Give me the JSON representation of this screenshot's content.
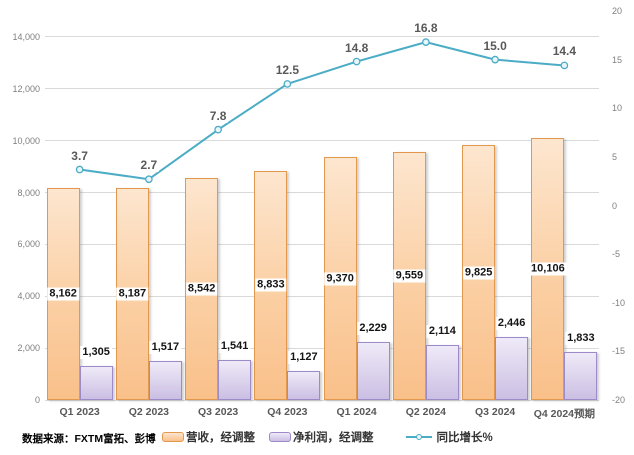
{
  "source_note": "数据来源：FXTM富拓、彭博",
  "legend": {
    "revenue": "营收，经调整",
    "profit": "净利润，经调整",
    "growth": "同比增长%"
  },
  "colors": {
    "revenue_fill": "#FBCFA3",
    "revenue_border": "#E2984F",
    "profit_fill": "#D5C9E8",
    "profit_border": "#9C8BC8",
    "growth_line": "#4BACC6",
    "gridline": "#D9D9D9",
    "axis_text": "#7F7F7F",
    "line_label_text": "#595959"
  },
  "chart_data": {
    "type": "combo",
    "categories": [
      "Q1 2023",
      "Q2 2023",
      "Q3 2023",
      "Q4 2023",
      "Q1 2024",
      "Q2 2024",
      "Q3 2024",
      "Q4 2024预期"
    ],
    "series": [
      {
        "name": "营收，经调整",
        "type": "bar",
        "axis": "left",
        "values": [
          8162,
          8187,
          8542,
          8833,
          9370,
          9559,
          9825,
          10106
        ]
      },
      {
        "name": "净利润，经调整",
        "type": "bar",
        "axis": "left",
        "values": [
          1305,
          1517,
          1541,
          1127,
          2229,
          2114,
          2446,
          1833
        ]
      },
      {
        "name": "同比增长%",
        "type": "line",
        "axis": "right",
        "values": [
          3.7,
          2.7,
          7.8,
          12.5,
          14.8,
          16.8,
          15.0,
          14.4
        ]
      }
    ],
    "left_axis": {
      "min": 0,
      "max": 15000,
      "tick_step": 2000,
      "ticks": [
        0,
        2000,
        4000,
        6000,
        8000,
        10000,
        12000,
        14000
      ]
    },
    "right_axis": {
      "min": -20,
      "max": 20,
      "tick_step": 5,
      "ticks": [
        -20,
        -15,
        -10,
        -5,
        0,
        5,
        10,
        15,
        20
      ]
    },
    "grid": true,
    "legend_position": "bottom",
    "title": ""
  }
}
